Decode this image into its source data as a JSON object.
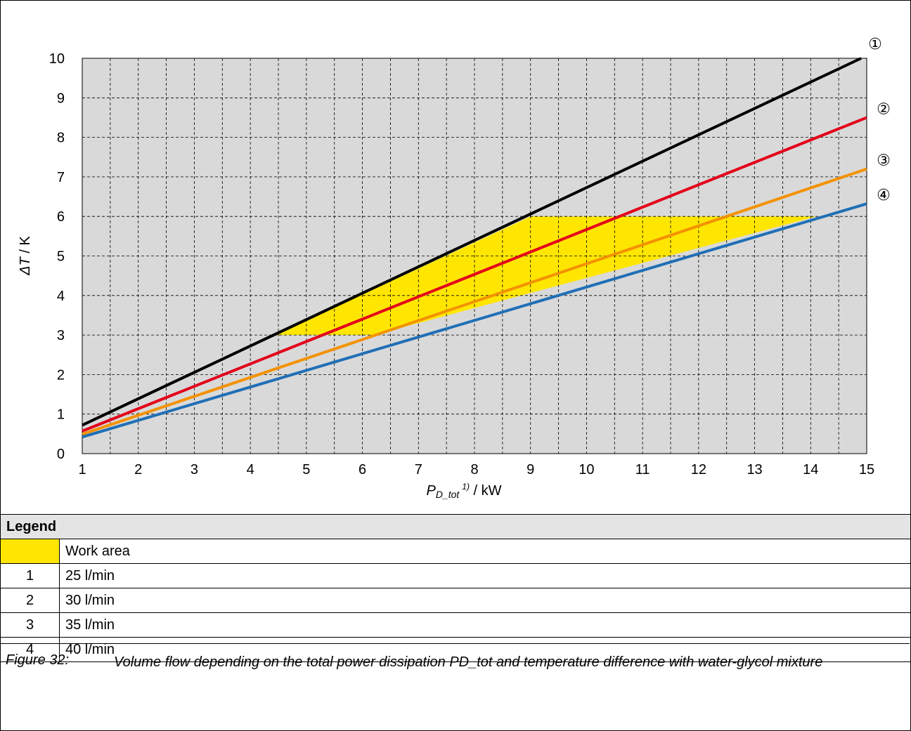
{
  "chart_data": {
    "type": "line",
    "xlabel_main": "P",
    "xlabel_sub": "D_tot",
    "xlabel_sup": "1)",
    "xlabel_unit": " / kW",
    "ylabel_symbol": "ΔT",
    "ylabel_unit": " / K",
    "xlim": [
      1,
      15
    ],
    "ylim": [
      0,
      10
    ],
    "x_ticks": [
      "1",
      "2",
      "3",
      "4",
      "5",
      "6",
      "7",
      "8",
      "9",
      "10",
      "11",
      "12",
      "13",
      "14",
      "15"
    ],
    "y_ticks": [
      "0",
      "1",
      "2",
      "3",
      "4",
      "5",
      "6",
      "7",
      "8",
      "9",
      "10"
    ],
    "grid": "dashed, major and minor",
    "series": [
      {
        "marker": "①",
        "color": "#000000",
        "x": [
          1,
          14.9
        ],
        "y": [
          0.72,
          10.0
        ]
      },
      {
        "marker": "②",
        "color": "#e3001b",
        "x": [
          1,
          15
        ],
        "y": [
          0.57,
          8.5
        ]
      },
      {
        "marker": "③",
        "color": "#f39200",
        "x": [
          1,
          15
        ],
        "y": [
          0.49,
          7.2
        ]
      },
      {
        "marker": "④",
        "color": "#1f6fb6",
        "x": [
          1,
          15
        ],
        "y": [
          0.42,
          6.32
        ]
      }
    ],
    "work_area": {
      "color": "#ffe600",
      "polygon": [
        [
          4.45,
          3.0
        ],
        [
          9.0,
          6.0
        ],
        [
          14.1,
          6.0
        ],
        [
          6.2,
          3.0
        ]
      ]
    },
    "plot_background": "#d9d9d9"
  },
  "legend": {
    "title": "Legend",
    "work_area_label": "Work area",
    "rows": [
      {
        "num": "1",
        "label": "25 l/min"
      },
      {
        "num": "2",
        "label": "30 l/min"
      },
      {
        "num": "3",
        "label": "35 l/min"
      },
      {
        "num": "4",
        "label": "40 l/min"
      }
    ]
  },
  "caption": {
    "label": "Figure 32:",
    "text": "Volume flow depending on the total power dissipation PD_tot and temperature difference with water-glycol mixture"
  }
}
